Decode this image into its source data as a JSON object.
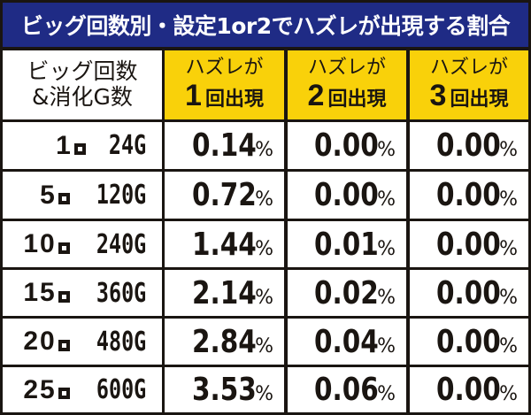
{
  "title": "ビッグ回数別・設定1or2でハズレが出現する割合",
  "colors": {
    "title_bg": "#1f2b85",
    "title_text": "#ffffff",
    "header_yellow": "#f9d10a",
    "border": "#1a1511",
    "cell_bg": "#ffffff"
  },
  "table": {
    "header": {
      "col0": {
        "line1": "ビッグ回数",
        "line2": "&消化G数"
      },
      "col1": {
        "line1": "ハズレが",
        "num": "1",
        "rest": "回出現"
      },
      "col2": {
        "line1": "ハズレが",
        "num": "2",
        "rest": "回出現"
      },
      "col3": {
        "line1": "ハズレが",
        "num": "3",
        "rest": "回出現"
      }
    },
    "unit_glyph": "回",
    "percent": "%",
    "rows": [
      {
        "count": "1",
        "games": "24G",
        "one": "0.14",
        "two": "0.00",
        "three": "0.00"
      },
      {
        "count": "5",
        "games": "120G",
        "one": "0.72",
        "two": "0.00",
        "three": "0.00"
      },
      {
        "count": "10",
        "games": "240G",
        "one": "1.44",
        "two": "0.01",
        "three": "0.00"
      },
      {
        "count": "15",
        "games": "360G",
        "one": "2.14",
        "two": "0.02",
        "three": "0.00"
      },
      {
        "count": "20",
        "games": "480G",
        "one": "2.84",
        "two": "0.04",
        "three": "0.00"
      },
      {
        "count": "25",
        "games": "600G",
        "one": "3.53",
        "two": "0.06",
        "three": "0.00"
      }
    ]
  }
}
